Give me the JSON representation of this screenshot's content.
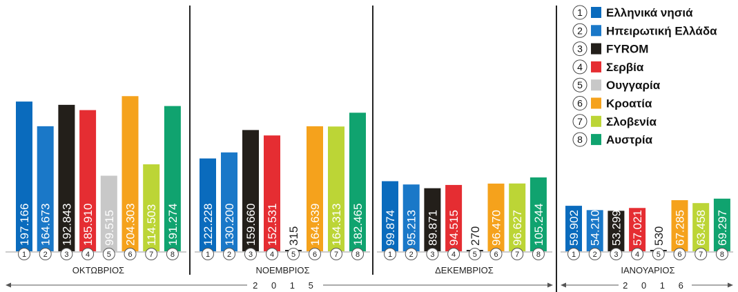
{
  "chart_data": {
    "type": "bar",
    "title": "",
    "xlabel": "",
    "ylabel": "",
    "legend": [
      {
        "num": "1",
        "name": "Ελληνικά νησιά",
        "color": "#0a6bbd"
      },
      {
        "num": "2",
        "name": "Ηπειρωτική Ελλάδα",
        "color": "#1a78c8"
      },
      {
        "num": "3",
        "name": "FYROM",
        "color": "#231f1a"
      },
      {
        "num": "4",
        "name": "Σερβία",
        "color": "#e52d32"
      },
      {
        "num": "5",
        "name": "Ουγγαρία",
        "color": "#c8c8c8"
      },
      {
        "num": "6",
        "name": "Κροατία",
        "color": "#f5a21c"
      },
      {
        "num": "7",
        "name": "Σλοβενία",
        "color": "#bcd536"
      },
      {
        "num": "8",
        "name": "Αυστρία",
        "color": "#10a36f"
      }
    ],
    "groups": [
      {
        "month": "ΟΚΤΩΒΡΙΟΣ",
        "values": [
          197166,
          164673,
          192843,
          185910,
          99515,
          204303,
          114503,
          191274
        ],
        "labels": [
          "197.166",
          "164.673",
          "192.843",
          "185.910",
          "99.515",
          "204.303",
          "114.503",
          "191.274"
        ]
      },
      {
        "month": "ΝΟΕΜΒΡΙΟΣ",
        "values": [
          122228,
          130200,
          159660,
          152531,
          315,
          164639,
          164313,
          182465
        ],
        "labels": [
          "122.228",
          "130.200",
          "159.660",
          "152.531",
          "315",
          "164.639",
          "164.313",
          "182.465"
        ]
      },
      {
        "month": "ΔΕΚΕΜΒΡΙΟΣ",
        "values": [
          99874,
          95213,
          89871,
          94515,
          270,
          96470,
          96627,
          105244
        ],
        "labels": [
          "99.874",
          "95.213",
          "89.871",
          "94.515",
          "270",
          "96.470",
          "96.627",
          "105.244"
        ]
      },
      {
        "month": "ΙΑΝΟΥΑΡΙΟΣ",
        "values": [
          59902,
          54210,
          53299,
          57021,
          530,
          67285,
          63458,
          69297
        ],
        "labels": [
          "59.902",
          "54.210",
          "53.299",
          "57.021",
          "530",
          "67.285",
          "63.458",
          "69.297"
        ]
      }
    ],
    "bar_numbers": [
      "1",
      "2",
      "3",
      "4",
      "5",
      "6",
      "7",
      "8"
    ],
    "years": [
      "2015",
      "2016"
    ]
  }
}
